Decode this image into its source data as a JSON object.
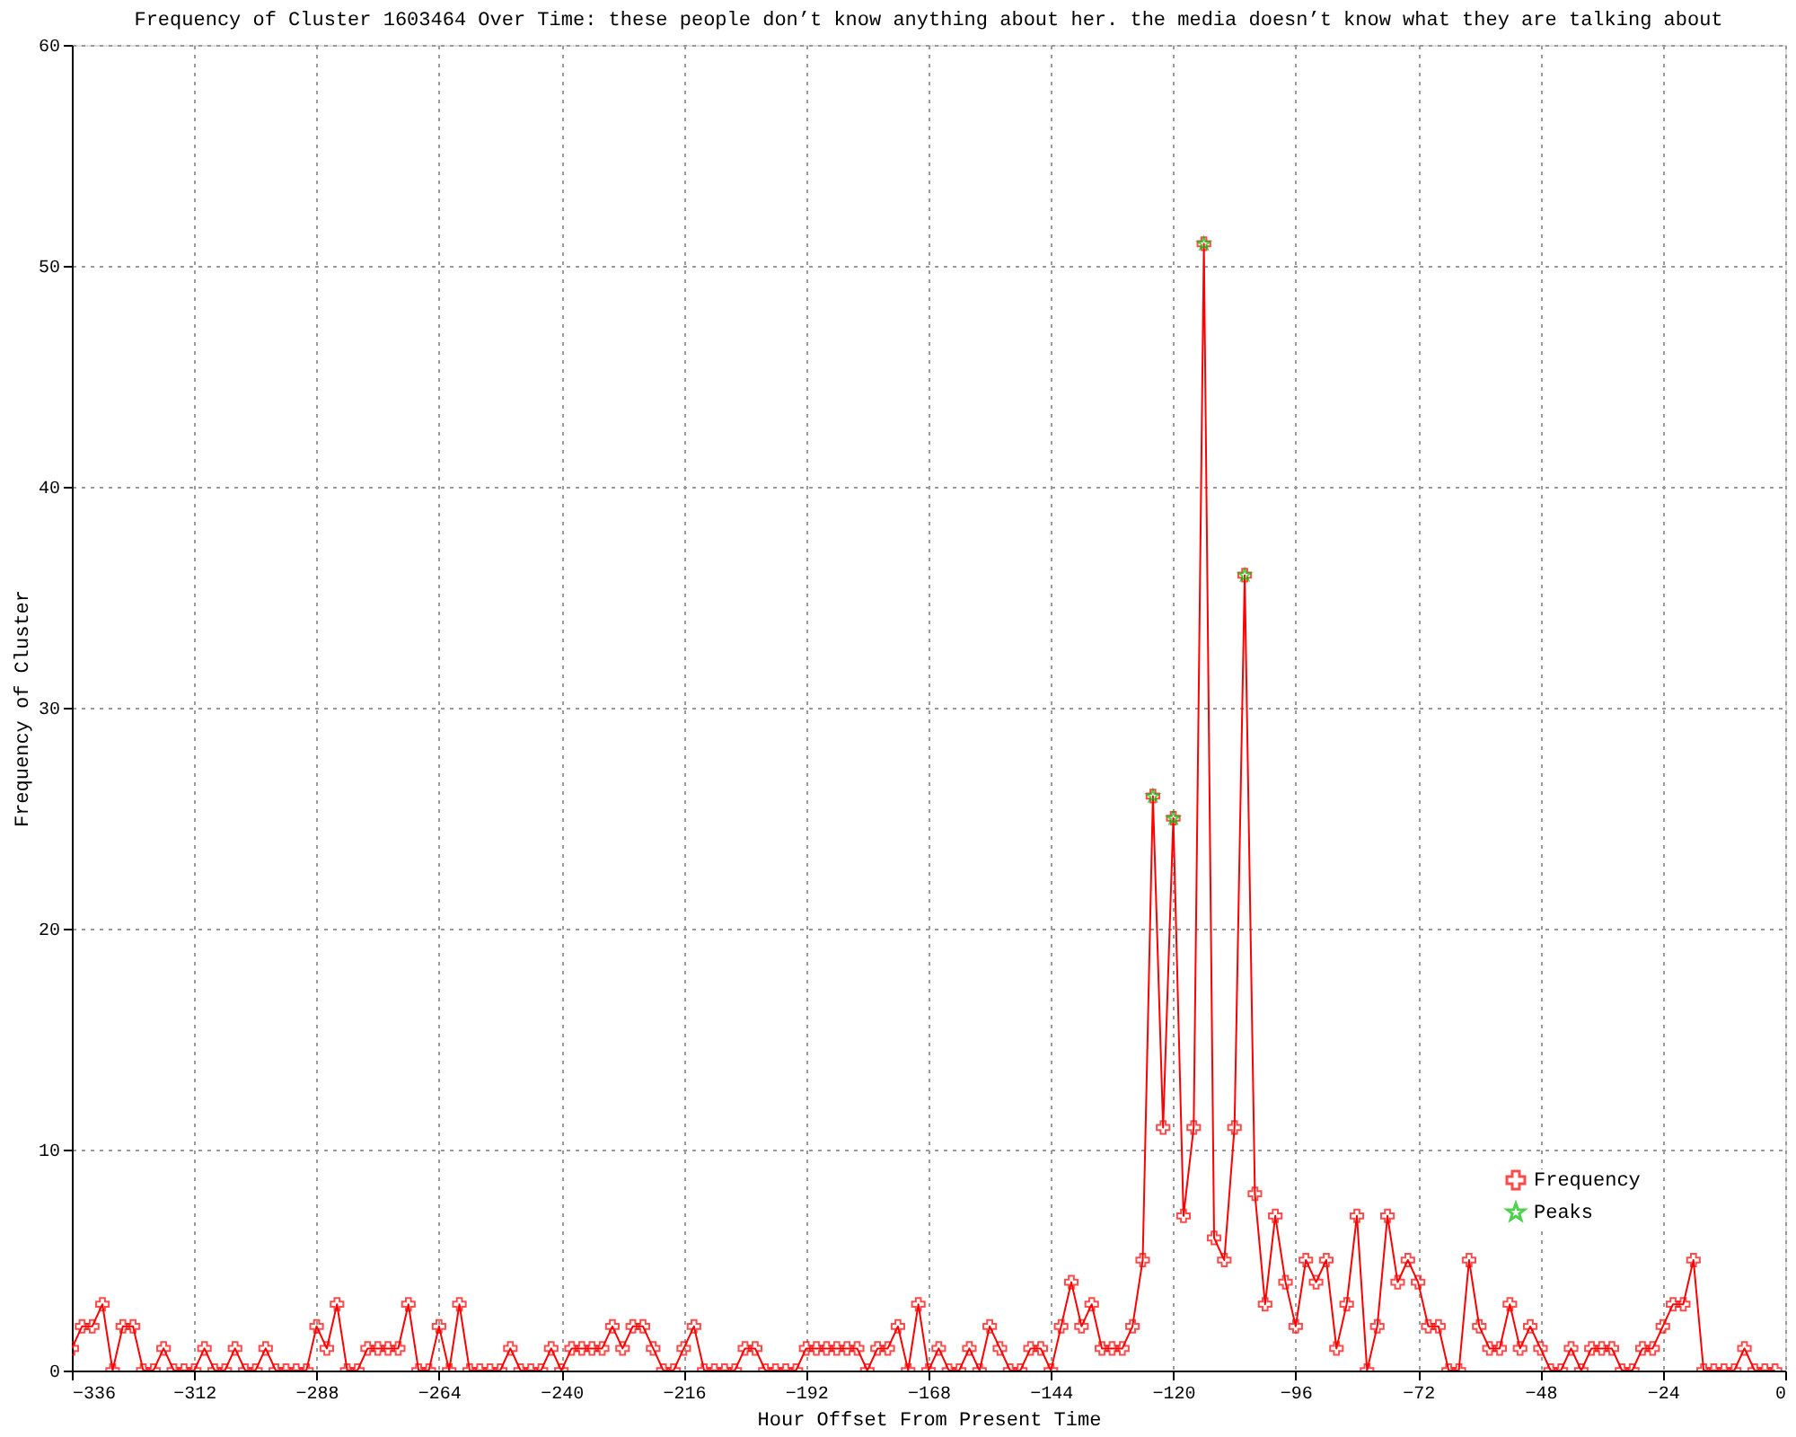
{
  "chart_data": {
    "type": "line",
    "title": "Frequency of Cluster 1603464 Over Time: these people don’t know anything about her. the media doesn’t know what they are talking about",
    "xlabel": "Hour Offset From Present Time",
    "ylabel": "Frequency of Cluster",
    "xlim": [
      -336,
      0
    ],
    "xticks": [
      -336,
      -312,
      -288,
      -264,
      -240,
      -216,
      -192,
      -168,
      -144,
      -120,
      -96,
      -72,
      -48,
      -24,
      0
    ],
    "ylim": [
      0,
      60
    ],
    "yticks": [
      0,
      10,
      20,
      30,
      40,
      50,
      60
    ],
    "grid": true,
    "legend": "bottom right",
    "series": [
      {
        "name": "Frequency",
        "type": "line",
        "color": "#ff0000",
        "marker": "cross",
        "x": [
          -336,
          -334,
          -332,
          -330,
          -328,
          -326,
          -324,
          -322,
          -320,
          -318,
          -316,
          -314,
          -312,
          -310,
          -308,
          -306,
          -304,
          -302,
          -300,
          -298,
          -296,
          -294,
          -292,
          -290,
          -288,
          -286,
          -284,
          -282,
          -280,
          -278,
          -276,
          -274,
          -272,
          -270,
          -268,
          -266,
          -264,
          -262,
          -260,
          -258,
          -256,
          -254,
          -252,
          -250,
          -248,
          -246,
          -244,
          -242,
          -240,
          -238,
          -236,
          -234,
          -232,
          -230,
          -228,
          -226,
          -224,
          -222,
          -220,
          -218,
          -216,
          -214,
          -212,
          -210,
          -208,
          -206,
          -204,
          -202,
          -200,
          -198,
          -196,
          -194,
          -192,
          -190,
          -188,
          -186,
          -184,
          -182,
          -180,
          -178,
          -176,
          -174,
          -172,
          -170,
          -168,
          -166,
          -164,
          -162,
          -160,
          -158,
          -156,
          -154,
          -152,
          -150,
          -148,
          -146,
          -144,
          -142,
          -140,
          -138,
          -136,
          -134,
          -132,
          -130,
          -128,
          -126,
          -124,
          -122,
          -120,
          -118,
          -116,
          -114,
          -112,
          -110,
          -108,
          -106,
          -104,
          -102,
          -100,
          -98,
          -96,
          -94,
          -92,
          -90,
          -88,
          -86,
          -84,
          -82,
          -80,
          -78,
          -76,
          -74,
          -72,
          -70,
          -68,
          -66,
          -64,
          -62,
          -60,
          -58,
          -56,
          -54,
          -52,
          -50,
          -48,
          -46,
          -44,
          -42,
          -40,
          -38,
          -36,
          -34,
          -32,
          -30,
          -28,
          -26,
          -24,
          -22,
          -20,
          -18,
          -16,
          -14,
          -12,
          -10,
          -8,
          -6,
          -4,
          -2
        ],
        "values": [
          1,
          2,
          2,
          3,
          0,
          2,
          2,
          0,
          0,
          1,
          0,
          0,
          0,
          1,
          0,
          0,
          1,
          0,
          0,
          1,
          0,
          0,
          0,
          0,
          2,
          1,
          3,
          0,
          0,
          1,
          1,
          1,
          1,
          3,
          0,
          0,
          2,
          0,
          3,
          0,
          0,
          0,
          0,
          1,
          0,
          0,
          0,
          1,
          0,
          1,
          1,
          1,
          1,
          2,
          1,
          2,
          2,
          1,
          0,
          0,
          1,
          2,
          0,
          0,
          0,
          0,
          1,
          1,
          0,
          0,
          0,
          0,
          1,
          1,
          1,
          1,
          1,
          1,
          0,
          1,
          1,
          2,
          0,
          3,
          0,
          1,
          0,
          0,
          1,
          0,
          2,
          1,
          0,
          0,
          1,
          1,
          0,
          2,
          4,
          2,
          3,
          1,
          1,
          1,
          2,
          5,
          26,
          11,
          25,
          7,
          11,
          51,
          6,
          5,
          11,
          36,
          8,
          3,
          7,
          4,
          2,
          5,
          4,
          5,
          1,
          3,
          7,
          0,
          2,
          7,
          4,
          5,
          4,
          2,
          2,
          0,
          0,
          5,
          2,
          1,
          1,
          3,
          1,
          2,
          1,
          0,
          0,
          1,
          0,
          1,
          1,
          1,
          0,
          0,
          1,
          1,
          2,
          3,
          3,
          5,
          0,
          0,
          0,
          0,
          1,
          0,
          0,
          0
        ]
      },
      {
        "name": "Peaks",
        "type": "scatter",
        "color": "#00c000",
        "marker": "star",
        "x": [
          -124,
          -120,
          -114,
          -106
        ],
        "values": [
          26,
          25,
          51,
          36
        ]
      }
    ]
  }
}
